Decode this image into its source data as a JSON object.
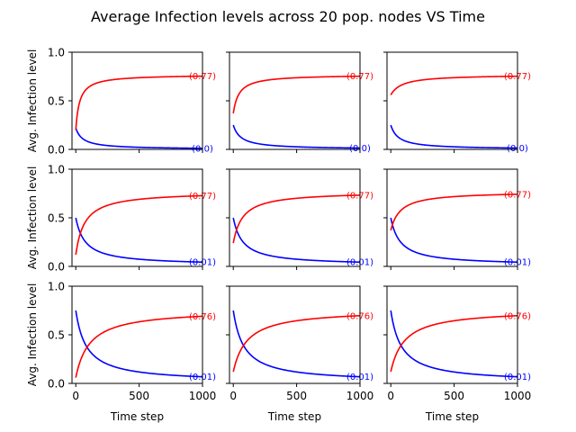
{
  "title": "Average Infection levels across 20 pop. nodes VS Time",
  "colors": {
    "red_series": "#ff0000",
    "blue_series": "#0000ff",
    "axis": "#000000"
  },
  "chart_data": {
    "type": "line",
    "layout": "3x3 grid, shared x and y axes",
    "xlabel": "Time step",
    "ylabel": "Avg. Infection level",
    "xlim": [
      -30,
      1000
    ],
    "ylim": [
      0,
      1
    ],
    "x_ticks": [
      0,
      500,
      1000
    ],
    "y_ticks": [
      0,
      0.5,
      1.0
    ],
    "x_tick_labels": [
      "0",
      "500",
      "1000"
    ],
    "y_tick_labels": [
      "0.0",
      "0.5",
      "1.0"
    ],
    "grid": false,
    "panels": [
      {
        "red_start": 0.2,
        "red_end": 0.77,
        "red_k": 30,
        "blue_start": 0.22,
        "blue_end": 0.0,
        "blue_k": 55,
        "red_label": "(0.77)",
        "blue_label": "(0.0)"
      },
      {
        "red_start": 0.37,
        "red_end": 0.77,
        "red_k": 45,
        "blue_start": 0.25,
        "blue_end": 0.0,
        "blue_k": 60,
        "red_label": "(0.77)",
        "blue_label": "(0.0)"
      },
      {
        "red_start": 0.56,
        "red_end": 0.77,
        "red_k": 90,
        "blue_start": 0.25,
        "blue_end": 0.0,
        "blue_k": 60,
        "red_label": "(0.77)",
        "blue_label": "(0.0)"
      },
      {
        "red_start": 0.12,
        "red_end": 0.77,
        "red_k": 70,
        "blue_start": 0.5,
        "blue_end": 0.01,
        "blue_k": 75,
        "red_label": "(0.77)",
        "blue_label": "(0.01)"
      },
      {
        "red_start": 0.24,
        "red_end": 0.77,
        "red_k": 75,
        "blue_start": 0.5,
        "blue_end": 0.01,
        "blue_k": 75,
        "red_label": "(0.77)",
        "blue_label": "(0.01)"
      },
      {
        "red_start": 0.37,
        "red_end": 0.77,
        "red_k": 75,
        "blue_start": 0.5,
        "blue_end": 0.01,
        "blue_k": 75,
        "red_label": "(0.77)",
        "blue_label": "(0.01)"
      },
      {
        "red_start": 0.06,
        "red_end": 0.76,
        "red_k": 110,
        "blue_start": 0.75,
        "blue_end": 0.01,
        "blue_k": 85,
        "red_label": "(0.76)",
        "blue_label": "(0.01)"
      },
      {
        "red_start": 0.12,
        "red_end": 0.76,
        "red_k": 110,
        "blue_start": 0.75,
        "blue_end": 0.01,
        "blue_k": 85,
        "red_label": "(0.76)",
        "blue_label": "(0.01)"
      },
      {
        "red_start": 0.12,
        "red_end": 0.76,
        "red_k": 110,
        "blue_start": 0.75,
        "blue_end": 0.01,
        "blue_k": 85,
        "red_label": "(0.76)",
        "blue_label": "(0.01)"
      }
    ]
  }
}
